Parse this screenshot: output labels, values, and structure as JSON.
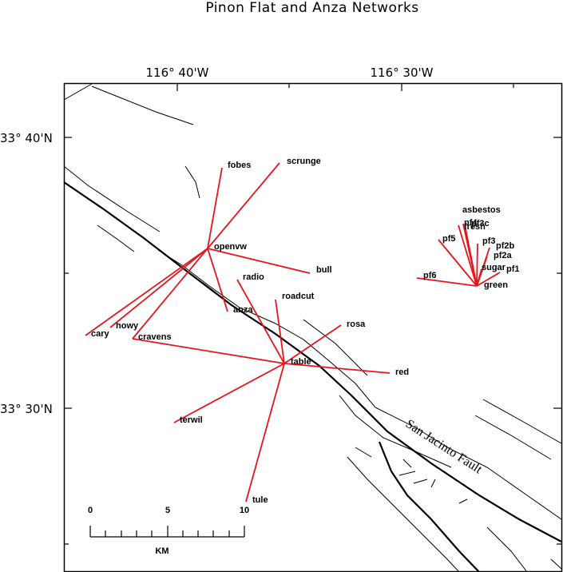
{
  "title": "Pinon Flat and Anza Networks",
  "axes": {
    "top_ticks": [
      "116° 40'W",
      "116° 30'W"
    ],
    "left_ticks": [
      "33° 40'N",
      "33° 30'N"
    ]
  },
  "fault_label": "San Jacinto Fault",
  "scale_bar": {
    "ticks": [
      "0",
      "5",
      "10"
    ],
    "unit": "KM"
  },
  "colors": {
    "link": "#e8141c",
    "fault": "#000000",
    "frame": "#000000"
  },
  "stations": {
    "fobes": "fobes",
    "scrunge": "scrunge",
    "openvw": "openvw",
    "bull": "bull",
    "radio": "radio",
    "roadcut": "roadcut",
    "anza": "anza",
    "howy": "howy",
    "cary": "cary",
    "cravens": "cravens",
    "rosa": "rosa",
    "table": "table",
    "red": "red",
    "terwil": "terwil",
    "tule": "tule",
    "asbestos": "asbestos",
    "pf4": "pf4",
    "pf3c": "pf3c",
    "fresh": "fresh",
    "pf5": "pf5",
    "pf3": "pf3",
    "pf2b": "pf2b",
    "pf2a": "pf2a",
    "sugar": "sugar",
    "pf1": "pf1",
    "pf6": "pf6",
    "green": "green"
  }
}
